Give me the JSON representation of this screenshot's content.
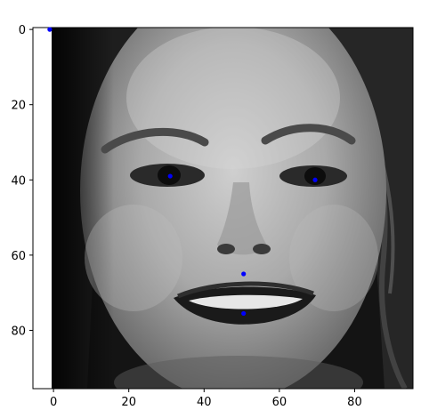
{
  "chart_data": {
    "type": "scatter",
    "title": "",
    "xlabel": "",
    "ylabel": "",
    "background_image": "grayscale-face-photo",
    "xlim": [
      -0.5,
      95.5
    ],
    "ylim": [
      95.5,
      -0.5
    ],
    "y_axis_inverted": true,
    "x_ticks": [
      0,
      20,
      40,
      60,
      80
    ],
    "y_ticks": [
      0,
      20,
      40,
      60,
      80
    ],
    "grid": false,
    "series": [
      {
        "name": "keypoints",
        "color": "#0000ff",
        "points": [
          {
            "x": -1,
            "y": 0
          },
          {
            "x": 31,
            "y": 39
          },
          {
            "x": 69.5,
            "y": 40
          },
          {
            "x": 50.5,
            "y": 65
          },
          {
            "x": 50.5,
            "y": 75.5
          }
        ]
      }
    ]
  }
}
